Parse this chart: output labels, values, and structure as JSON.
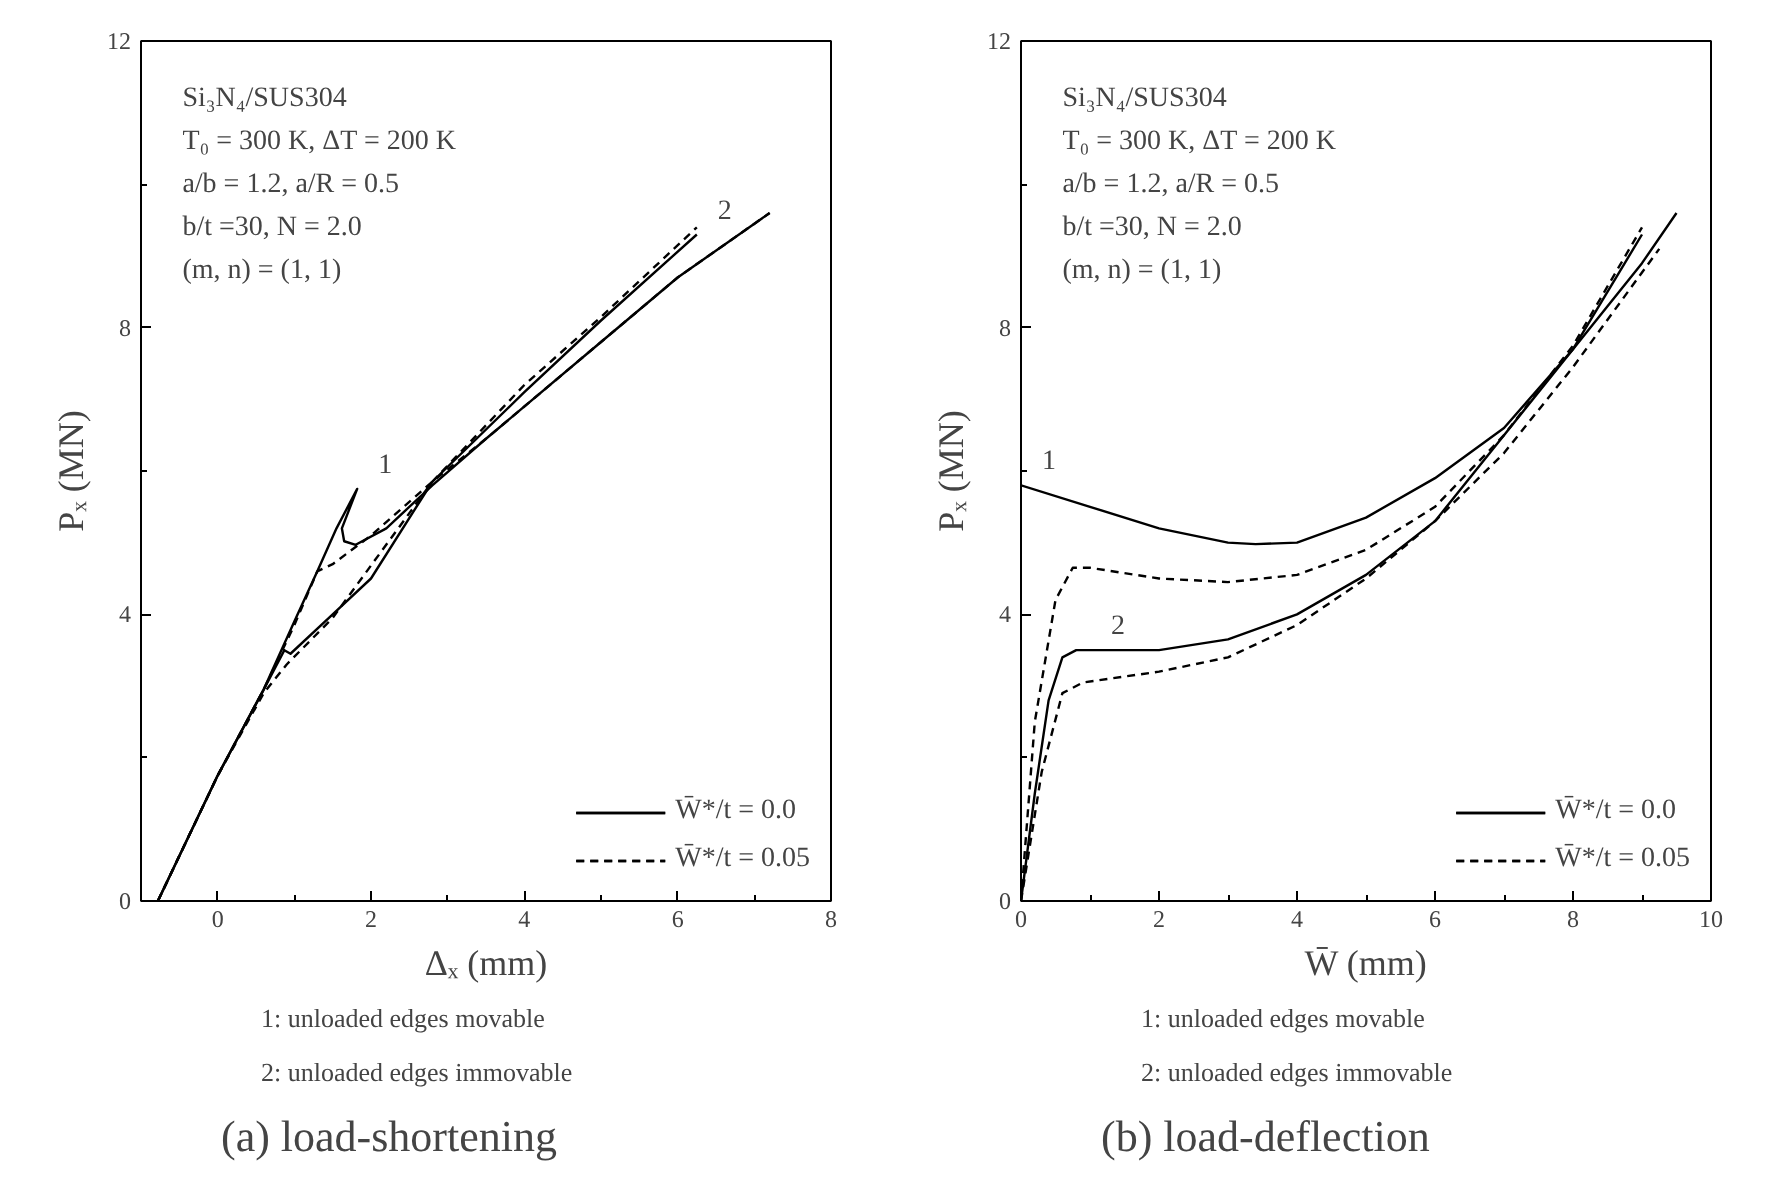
{
  "chart_data": [
    {
      "type": "line",
      "title": "(a) load-shortening",
      "subtitle": "Si₃N₄/SUS304\nT₀ = 300 K, ΔT = 200 K\na/b = 1.2, a/R = 0.5\nb/t =30, N = 2.0\n(m, n) = (1, 1)",
      "xlabel": "Δₓ (mm)",
      "ylabel": "Pₓ (MN)",
      "xlim": [
        -1,
        8
      ],
      "ylim": [
        0,
        12
      ],
      "xticks": [
        0,
        2,
        4,
        6,
        8
      ],
      "yticks": [
        0,
        4,
        8,
        12
      ],
      "grid": false,
      "legend": "bottom right",
      "annotations": [
        "1: unloaded edges movable",
        "2: unloaded edges immovable",
        {
          "text": "1",
          "x": 1.82,
          "y": 5.75
        },
        {
          "text": "2",
          "x": 6.25,
          "y": 9.3
        }
      ],
      "series": [
        {
          "name": "W̄*/t = 0.0",
          "color": "#000000",
          "line_style": "solid",
          "x": [
            -0.78,
            0,
            0.6,
            1.0,
            1.3,
            1.55,
            1.82,
            1.62,
            1.65,
            1.8,
            2.2,
            2.8,
            3.5,
            5,
            6,
            7.2
          ],
          "values": [
            0,
            1.75,
            2.95,
            3.9,
            4.6,
            5.2,
            5.75,
            5.2,
            5.02,
            4.97,
            5.2,
            5.8,
            6.45,
            7.8,
            8.7,
            9.6
          ]
        },
        {
          "name": "W̄*/t = 0.0",
          "color": "#000000",
          "line_style": "solid",
          "x": [
            -0.78,
            0,
            0.6,
            0.87,
            0.95,
            1.5,
            2,
            2.8,
            4,
            5,
            6.25
          ],
          "values": [
            0,
            1.75,
            2.95,
            3.5,
            3.45,
            4.0,
            4.5,
            5.85,
            7.1,
            8.1,
            9.3
          ]
        },
        {
          "name": "W̄*/t = 0.05",
          "color": "#000000",
          "line_style": "dashed",
          "x": [
            -0.78,
            0,
            0.6,
            1.0,
            1.3,
            1.5,
            2,
            2.8,
            3.5,
            5,
            6,
            7.2
          ],
          "values": [
            0,
            1.75,
            2.95,
            3.85,
            4.6,
            4.7,
            5.1,
            5.85,
            6.45,
            7.8,
            8.7,
            9.6
          ]
        },
        {
          "name": "W̄*/t = 0.05",
          "color": "#000000",
          "line_style": "dashed",
          "x": [
            -0.78,
            0,
            0.6,
            0.9,
            1.5,
            2.8,
            4,
            5,
            6.25
          ],
          "values": [
            0,
            1.75,
            2.9,
            3.3,
            3.95,
            5.85,
            7.2,
            8.15,
            9.4
          ]
        }
      ]
    },
    {
      "type": "line",
      "title": "(b) load-deflection",
      "subtitle": "Si₃N₄/SUS304\nT₀ = 300 K, ΔT = 200 K\na/b = 1.2, a/R = 0.5\nb/t =30, N = 2.0\n(m, n) = (1, 1)",
      "xlabel": "W̄ (mm)",
      "ylabel": "Pₓ (MN)",
      "xlim": [
        0,
        10
      ],
      "ylim": [
        0,
        12
      ],
      "xticks": [
        0,
        2,
        4,
        6,
        8,
        10
      ],
      "yticks": [
        0,
        4,
        8,
        12
      ],
      "grid": false,
      "legend": "bottom right",
      "annotations": [
        "1: unloaded edges movable",
        "2: unloaded edges immovable",
        {
          "text": "1",
          "x": 0,
          "y": 5.8
        },
        {
          "text": "2",
          "x": 1,
          "y": 3.5
        }
      ],
      "series": [
        {
          "name": "W̄*/t = 0.0",
          "color": "#000000",
          "line_style": "solid",
          "x": [
            0,
            1,
            2,
            3,
            3.4,
            4,
            5,
            6,
            7,
            8,
            9,
            9.5
          ],
          "values": [
            5.8,
            5.5,
            5.2,
            5.0,
            4.98,
            5.0,
            5.35,
            5.9,
            6.6,
            7.7,
            8.9,
            9.6
          ]
        },
        {
          "name": "W̄*/t = 0.0",
          "color": "#000000",
          "line_style": "solid",
          "x": [
            0,
            0.2,
            0.4,
            0.6,
            0.8,
            1,
            2,
            3,
            4,
            5,
            6,
            7,
            8,
            9
          ],
          "values": [
            0,
            1.5,
            2.8,
            3.4,
            3.5,
            3.5,
            3.5,
            3.65,
            4.0,
            4.55,
            5.3,
            6.5,
            7.7,
            9.3
          ]
        },
        {
          "name": "W̄*/t = 0.05",
          "color": "#000000",
          "line_style": "dashed",
          "x": [
            0,
            0.2,
            0.5,
            0.75,
            1,
            2,
            3,
            4,
            5,
            6,
            7,
            8,
            9
          ],
          "values": [
            0,
            2.5,
            4.2,
            4.65,
            4.65,
            4.5,
            4.45,
            4.55,
            4.9,
            5.5,
            6.5,
            7.75,
            9.4
          ]
        },
        {
          "name": "W̄*/t = 0.05",
          "color": "#000000",
          "line_style": "dashed",
          "x": [
            0,
            0.3,
            0.6,
            0.9,
            2,
            3,
            4,
            5,
            6,
            7,
            8,
            9.25
          ],
          "values": [
            0,
            1.8,
            2.9,
            3.05,
            3.2,
            3.4,
            3.85,
            4.5,
            5.3,
            6.25,
            7.45,
            9.1
          ]
        }
      ]
    }
  ]
}
